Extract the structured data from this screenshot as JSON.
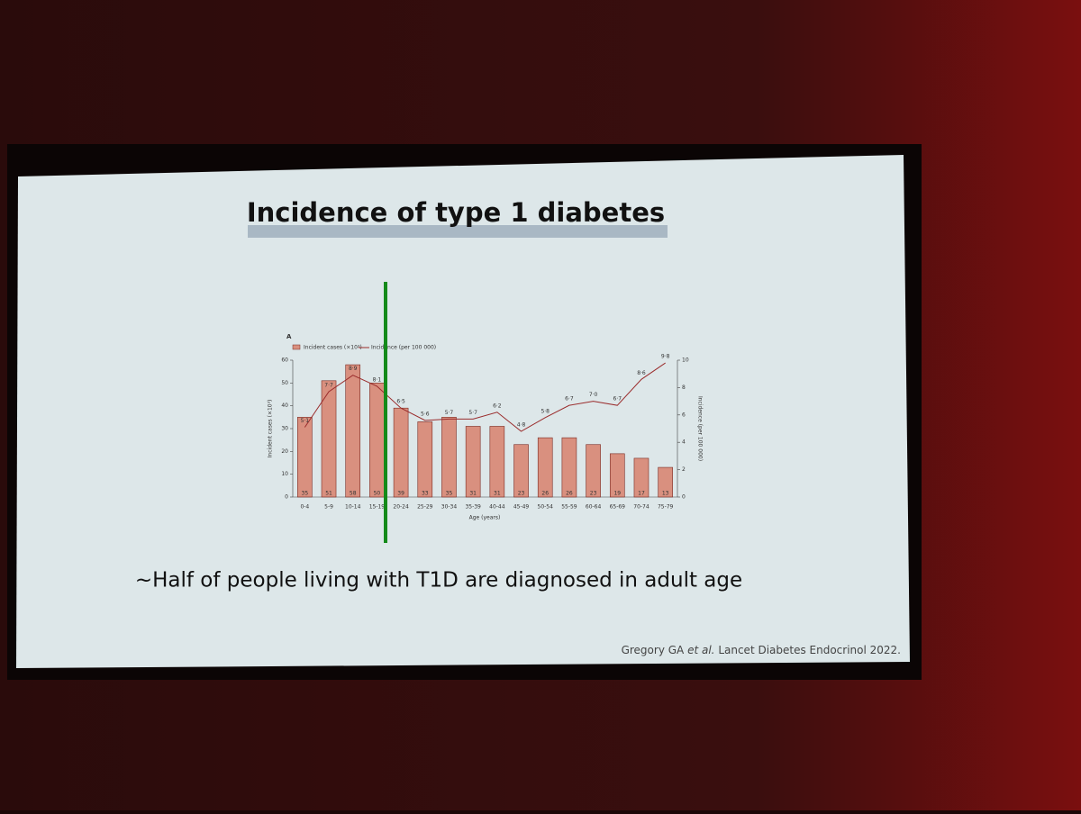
{
  "slide": {
    "title": "Incidence of type 1 diabetes",
    "caption": "~Half of people living with T1D are diagnosed in adult age",
    "citation_author": "Gregory GA",
    "citation_etal": "et al.",
    "citation_source": "Lancet Diabetes Endocrinol 2022."
  },
  "chart_data": {
    "type": "bar",
    "panel_label": "A",
    "categories": [
      "0-4",
      "5-9",
      "10-14",
      "15-19",
      "20-24",
      "25-29",
      "30-34",
      "35-39",
      "40-44",
      "45-49",
      "50-54",
      "55-59",
      "60-64",
      "65-69",
      "70-74",
      "75-79"
    ],
    "xlabel": "Age (years)",
    "ylabel": "Incident cases (×10³)",
    "y2label": "Incidence (per 100 000)",
    "series": [
      {
        "name": "Incident cases (×10³)",
        "type": "bar",
        "color": "#d9907f",
        "values": [
          35,
          51,
          58,
          50,
          39,
          33,
          35,
          31,
          31,
          23,
          26,
          26,
          23,
          19,
          17,
          13
        ]
      },
      {
        "name": "Incidence (per 100 000)",
        "type": "line",
        "axis": "y2",
        "color": "#9a2c2c",
        "values": [
          5.1,
          7.7,
          8.9,
          8.1,
          6.5,
          5.6,
          5.7,
          5.7,
          6.2,
          4.8,
          5.8,
          6.7,
          7.0,
          6.7,
          8.6,
          9.8
        ],
        "value_labels": [
          "5·1",
          "7·7",
          "8·9",
          "8·1",
          "6·5",
          "5·6",
          "5·7",
          "5·7",
          "6·2",
          "4·8",
          "5·8",
          "6·7",
          "7·0",
          "6·7",
          "8·6",
          "9·8"
        ]
      }
    ],
    "ylim": [
      0,
      60
    ],
    "yticks": [
      0,
      10,
      20,
      30,
      40,
      50,
      60
    ],
    "y2lim": [
      0,
      10
    ],
    "y2ticks": [
      0,
      2,
      4,
      6,
      8,
      10
    ],
    "grid": false
  }
}
